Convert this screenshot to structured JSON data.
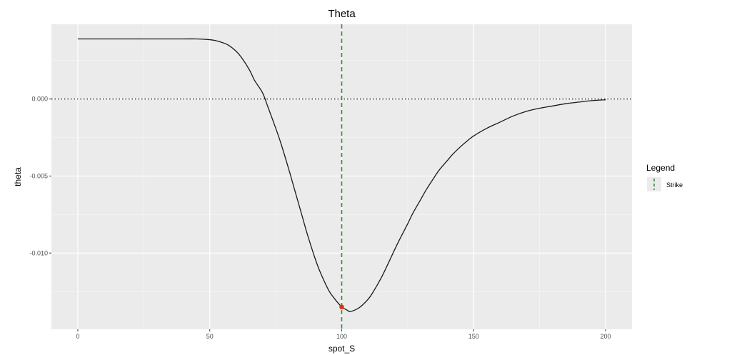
{
  "chart_data": {
    "type": "line",
    "title": "Theta",
    "xlabel": "spot_S",
    "ylabel": "theta",
    "xlim": [
      -10,
      210
    ],
    "ylim": [
      -0.01495,
      0.00485
    ],
    "x_ticks": [
      0,
      50,
      100,
      150,
      200
    ],
    "x_tick_labels": [
      "0",
      "50",
      "100",
      "150",
      "200"
    ],
    "y_ticks": [
      0.0,
      -0.005,
      -0.01
    ],
    "y_tick_labels": [
      "0.000",
      "-0.005",
      "-0.010"
    ],
    "grid": true,
    "series": [
      {
        "x": [
          0,
          10,
          20,
          30,
          40,
          45,
          50,
          52,
          55,
          57,
          60,
          62,
          65,
          67,
          70,
          72,
          75,
          77,
          80,
          82,
          85,
          87,
          90,
          92,
          95,
          97,
          100,
          102,
          103,
          105,
          107,
          110,
          112,
          115,
          117,
          120,
          122,
          125,
          127,
          130,
          132,
          135,
          137,
          140,
          142,
          145,
          147,
          150,
          155,
          160,
          165,
          170,
          175,
          180,
          185,
          190,
          195,
          200
        ],
        "y": [
          0.0039,
          0.0039,
          0.0039,
          0.0039,
          0.0039,
          0.0039,
          0.00385,
          0.0038,
          0.00365,
          0.0035,
          0.0031,
          0.0027,
          0.0019,
          0.0012,
          0.0004,
          -0.0005,
          -0.0019,
          -0.0029,
          -0.0046,
          -0.0058,
          -0.0076,
          -0.0088,
          -0.0104,
          -0.0113,
          -0.0124,
          -0.0129,
          -0.0135,
          -0.0137,
          -0.0138,
          -0.0137,
          -0.0135,
          -0.013,
          -0.0125,
          -0.0116,
          -0.0109,
          -0.0098,
          -0.0091,
          -0.0081,
          -0.0074,
          -0.0065,
          -0.0059,
          -0.0051,
          -0.0046,
          -0.004,
          -0.0036,
          -0.0031,
          -0.0028,
          -0.0024,
          -0.0019,
          -0.0015,
          -0.0011,
          -0.0008,
          -0.0006,
          -0.00045,
          -0.0003,
          -0.0002,
          -0.0001,
          -5e-05
        ]
      }
    ],
    "hline": {
      "y": 0
    },
    "vline": {
      "x": 100,
      "color": "#3a8a3a"
    },
    "point": {
      "x": 100,
      "y": -0.0135,
      "color": "#e03010"
    },
    "legend": {
      "title": "Legend",
      "position": "right",
      "entries": [
        {
          "label": "Strike",
          "color": "#3a8a3a"
        }
      ]
    }
  }
}
